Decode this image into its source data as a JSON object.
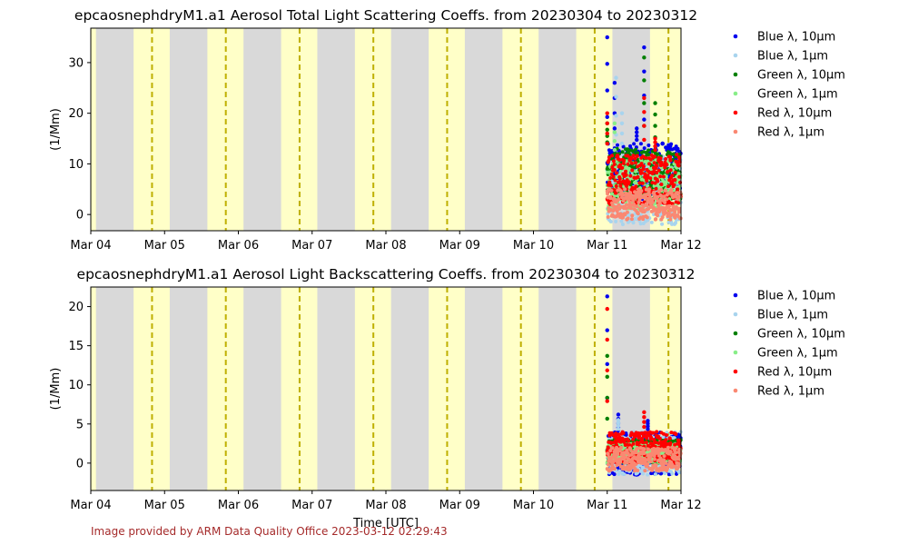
{
  "footer": "Image provided by ARM Data Quality Office 2023-03-12 02:29:43",
  "xlabel": "Time [UTC]",
  "x_ticks": [
    "Mar 04",
    "Mar 05",
    "Mar 06",
    "Mar 07",
    "Mar 08",
    "Mar 09",
    "Mar 10",
    "Mar 11",
    "Mar 12"
  ],
  "colors": {
    "night": "#d9d9d9",
    "day": "#ffffc8",
    "noon_line": "#bfb000",
    "blue_10": "#0000ee",
    "blue_1": "#a8d4ee",
    "green_10": "#007f00",
    "green_1": "#88ee88",
    "red_10": "#ff0000",
    "red_1": "#fa8872"
  },
  "legend_entries": [
    {
      "label": "Blue λ, 10µm",
      "color": "#0000ee"
    },
    {
      "label": "Blue λ, 1µm",
      "color": "#a8d4ee"
    },
    {
      "label": "Green λ, 10µm",
      "color": "#007f00"
    },
    {
      "label": "Green λ, 1µm",
      "color": "#88ee88"
    },
    {
      "label": "Red λ, 10µm",
      "color": "#ff0000"
    },
    {
      "label": "Red λ, 1µm",
      "color": "#fa8872"
    }
  ],
  "chart_data": [
    {
      "type": "scatter",
      "title": "epcaosnephdryM1.a1 Aerosol Total Light Scattering Coeffs. from 20230304 to 20230312",
      "ylabel": "(1/Mm)",
      "xlabel": "",
      "xlim": [
        "2023-03-04",
        "2023-03-12"
      ],
      "ylim": [
        -3.2,
        36.8
      ],
      "yticks": [
        0,
        10,
        20,
        30
      ],
      "data_start": "2023-03-11",
      "series": [
        {
          "name": "Blue λ, 10µm",
          "color": "#0000ee",
          "typical": [
            3,
            14
          ],
          "peaks": [
            [
              0.0,
              35
            ],
            [
              0.1,
              26
            ],
            [
              0.4,
              17
            ],
            [
              0.5,
              33
            ],
            [
              0.75,
              14
            ]
          ]
        },
        {
          "name": "Blue λ, 1µm",
          "color": "#a8d4ee",
          "typical": [
            -2,
            12
          ],
          "peaks": [
            [
              0.12,
              27
            ],
            [
              0.2,
              20
            ]
          ]
        },
        {
          "name": "Green λ, 10µm",
          "color": "#007f00",
          "typical": [
            3,
            13
          ],
          "peaks": [
            [
              0.0,
              18
            ],
            [
              0.5,
              31
            ],
            [
              0.65,
              22
            ]
          ]
        },
        {
          "name": "Green λ, 1µm",
          "color": "#88ee88",
          "typical": [
            1,
            11
          ],
          "peaks": [
            [
              0.1,
              18
            ]
          ]
        },
        {
          "name": "Red λ, 10µm",
          "color": "#ff0000",
          "typical": [
            2,
            12
          ],
          "peaks": [
            [
              0.0,
              20
            ],
            [
              0.5,
              23
            ],
            [
              0.65,
              15
            ]
          ]
        },
        {
          "name": "Red λ, 1µm",
          "color": "#fa8872",
          "typical": [
            -1,
            5
          ],
          "peaks": []
        }
      ]
    },
    {
      "type": "scatter",
      "title": "epcaosnephdryM1.a1 Aerosol Light Backscattering Coeffs. from 20230304 to 20230312",
      "ylabel": "(1/Mm)",
      "xlabel": "Time [UTC]",
      "xlim": [
        "2023-03-04",
        "2023-03-12"
      ],
      "ylim": [
        -3.5,
        22.5
      ],
      "yticks": [
        0,
        5,
        10,
        15,
        20
      ],
      "data_start": "2023-03-11",
      "series": [
        {
          "name": "Blue λ, 10µm",
          "color": "#0000ee",
          "typical": [
            -1.5,
            4
          ],
          "peaks": [
            [
              0.0,
              21.3
            ],
            [
              0.15,
              6.2
            ],
            [
              0.55,
              5.4
            ]
          ]
        },
        {
          "name": "Blue λ, 1µm",
          "color": "#a8d4ee",
          "typical": [
            -1.5,
            4
          ],
          "peaks": [
            [
              0.15,
              5.5
            ]
          ]
        },
        {
          "name": "Green λ, 10µm",
          "color": "#007f00",
          "typical": [
            0,
            3
          ],
          "peaks": [
            [
              0.0,
              13.7
            ]
          ]
        },
        {
          "name": "Green λ, 1µm",
          "color": "#88ee88",
          "typical": [
            0,
            2.5
          ],
          "peaks": []
        },
        {
          "name": "Red λ, 10µm",
          "color": "#ff0000",
          "typical": [
            0,
            4
          ],
          "peaks": [
            [
              0.0,
              19.7
            ],
            [
              0.5,
              6.5
            ]
          ]
        },
        {
          "name": "Red λ, 1µm",
          "color": "#fa8872",
          "typical": [
            -1,
            2
          ],
          "peaks": []
        }
      ]
    }
  ]
}
